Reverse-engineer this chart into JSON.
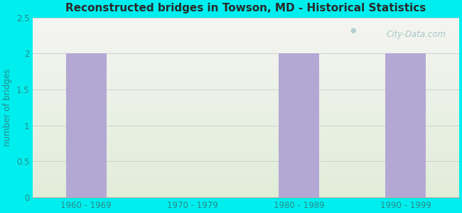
{
  "title": "Reconstructed bridges in Towson, MD - Historical Statistics",
  "categories": [
    "1960 - 1969",
    "1970 - 1979",
    "1980 - 1989",
    "1990 - 1999"
  ],
  "values": [
    2,
    0,
    2,
    2
  ],
  "bar_color": "#b3a8d4",
  "ylabel": "number of bridges",
  "ylim": [
    0,
    2.5
  ],
  "yticks": [
    0,
    0.5,
    1,
    1.5,
    2,
    2.5
  ],
  "background_outer": "#00eeee",
  "background_top": "#f5f5f0",
  "background_bottom": "#e0edd8",
  "title_color": "#2a2a2a",
  "axis_label_color": "#2a8a8a",
  "tick_color": "#2a8a8a",
  "grid_color": "#cccccc",
  "watermark": "City-Data.com",
  "watermark_color": "#8ab8b8"
}
